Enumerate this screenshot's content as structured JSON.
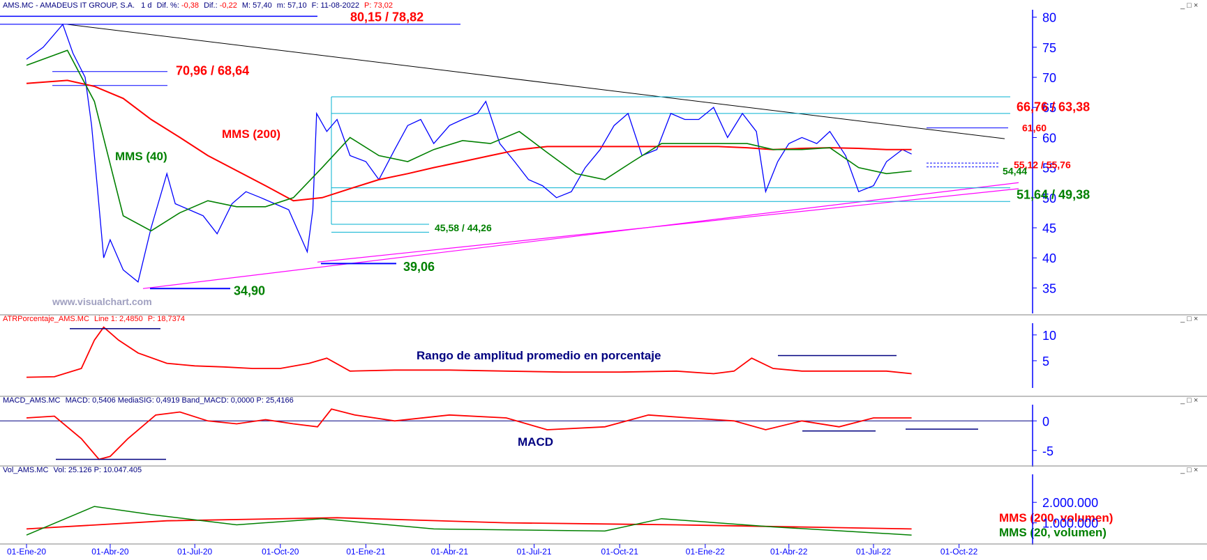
{
  "colors": {
    "price": "#0000ff",
    "mms200": "#ff0000",
    "mms40": "#008000",
    "support": "#ff00ff",
    "resistance": "#00b0d0",
    "trend": "#000000",
    "title_blue": "#000080",
    "axis_blue": "#0000ff",
    "grid": "#c0c0c0"
  },
  "header": {
    "ticker": "AMS.MC - AMADEUS IT GROUP, S.A.",
    "period": "1 d",
    "dif_pct_label": "Dif. %:",
    "dif_pct": "-0,38",
    "dif_label": "Dif.:",
    "dif": "-0,22",
    "max_label": "M:",
    "max": "57,40",
    "min_label": "m:",
    "min": "57,10",
    "date_label": "F:",
    "date": "11-08-2022",
    "p_label": "P:",
    "p": "73,02"
  },
  "panel_controls": "_ □ ×",
  "watermark": "www.visualchart.com",
  "chart_data": [
    {
      "type": "line",
      "panel": "price",
      "ylim": [
        31,
        81
      ],
      "yticks": [
        35,
        40,
        45,
        50,
        55,
        60,
        65,
        70,
        75,
        80
      ],
      "x_dates": [
        "01-Ene-20",
        "01-Abr-20",
        "01-Jul-20",
        "01-Oct-20",
        "01-Ene-21",
        "01-Abr-21",
        "01-Jul-21",
        "01-Oct-21",
        "01-Ene-22",
        "01-Abr-22",
        "01-Jul-22",
        "01-Oct-22"
      ],
      "series": [
        {
          "name": "MMS (40)",
          "x": [
            "2020-01-02",
            "2020-02-15",
            "2020-03-15",
            "2020-04-15",
            "2020-05-15",
            "2020-06-15",
            "2020-07-15",
            "2020-08-15",
            "2020-09-15",
            "2020-10-15",
            "2020-11-15",
            "2020-12-15",
            "2021-01-15",
            "2021-02-15",
            "2021-03-15",
            "2021-04-15",
            "2021-05-15",
            "2021-06-15",
            "2021-07-15",
            "2021-08-15",
            "2021-09-15",
            "2021-10-15",
            "2021-11-15",
            "2021-12-15",
            "2022-01-15",
            "2022-02-15",
            "2022-03-15",
            "2022-04-15",
            "2022-05-15",
            "2022-06-15",
            "2022-07-15",
            "2022-08-11"
          ],
          "values": [
            72,
            74.5,
            66,
            47,
            44.5,
            47.5,
            49.5,
            48.5,
            48.5,
            50,
            55,
            60,
            57,
            56,
            58,
            59.5,
            59,
            61,
            57.5,
            54,
            53,
            56,
            59,
            59,
            59,
            59,
            58,
            58,
            58.3,
            55,
            54,
            54.44
          ]
        },
        {
          "name": "MMS (200)",
          "x": [
            "2020-01-02",
            "2020-02-15",
            "2020-03-15",
            "2020-04-15",
            "2020-05-15",
            "2020-06-15",
            "2020-07-15",
            "2020-08-15",
            "2020-09-15",
            "2020-10-15",
            "2020-11-15",
            "2020-12-15",
            "2021-01-15",
            "2021-02-15",
            "2021-03-15",
            "2021-04-15",
            "2021-05-15",
            "2021-06-15",
            "2021-07-15",
            "2021-08-15",
            "2021-09-15",
            "2021-10-15",
            "2021-11-15",
            "2021-12-15",
            "2022-01-15",
            "2022-02-15",
            "2022-03-15",
            "2022-04-15",
            "2022-05-15",
            "2022-06-15",
            "2022-07-15",
            "2022-08-11"
          ],
          "values": [
            69,
            69.5,
            68.5,
            66.5,
            63,
            60,
            57,
            54.5,
            52,
            49.5,
            50,
            51.5,
            53,
            54,
            55,
            56,
            57,
            58,
            58.5,
            58.5,
            58.5,
            58.5,
            58.5,
            58.5,
            58.5,
            58.3,
            58,
            58.2,
            58.3,
            58.2,
            58,
            58
          ]
        },
        {
          "name": "AMS.MC",
          "x": [
            "2020-01-02",
            "2020-01-20",
            "2020-02-10",
            "2020-02-21",
            "2020-03-05",
            "2020-03-12",
            "2020-03-18",
            "2020-03-25",
            "2020-04-01",
            "2020-04-15",
            "2020-05-01",
            "2020-05-15",
            "2020-06-01",
            "2020-06-10",
            "2020-06-25",
            "2020-07-10",
            "2020-07-25",
            "2020-08-10",
            "2020-08-25",
            "2020-09-10",
            "2020-09-25",
            "2020-10-10",
            "2020-10-30",
            "2020-11-05",
            "2020-11-09",
            "2020-11-20",
            "2020-12-01",
            "2020-12-15",
            "2021-01-01",
            "2021-01-15",
            "2021-02-01",
            "2021-02-15",
            "2021-03-01",
            "2021-03-15",
            "2021-04-01",
            "2021-04-15",
            "2021-05-01",
            "2021-05-10",
            "2021-05-25",
            "2021-06-10",
            "2021-06-25",
            "2021-07-10",
            "2021-07-25",
            "2021-08-10",
            "2021-08-25",
            "2021-09-10",
            "2021-09-25",
            "2021-10-10",
            "2021-10-25",
            "2021-11-10",
            "2021-11-25",
            "2021-12-10",
            "2021-12-25",
            "2022-01-10",
            "2022-01-25",
            "2022-02-10",
            "2022-02-25",
            "2022-03-07",
            "2022-03-20",
            "2022-04-01",
            "2022-04-15",
            "2022-05-01",
            "2022-05-15",
            "2022-06-01",
            "2022-06-15",
            "2022-07-01",
            "2022-07-15",
            "2022-08-01",
            "2022-08-11"
          ],
          "values": [
            73,
            75,
            78.8,
            74,
            70,
            62,
            52,
            40,
            43,
            38,
            36,
            45,
            54,
            49,
            48,
            47,
            44,
            49,
            51,
            50,
            49,
            48,
            41,
            48,
            64,
            61,
            63,
            57,
            56,
            53,
            58,
            62,
            63,
            59,
            62,
            63,
            64,
            66,
            59,
            56,
            53,
            52,
            50,
            51,
            55,
            58,
            62,
            64,
            57,
            58,
            64,
            63,
            63,
            65,
            60,
            64,
            61,
            51,
            56,
            59,
            60,
            59,
            61,
            57,
            51,
            52,
            56,
            58,
            57.25
          ]
        }
      ],
      "levels": [
        {
          "label": "80,15 / 78,82",
          "values": [
            80.15,
            78.82
          ]
        },
        {
          "label": "70,96 / 68,64",
          "values": [
            70.96,
            68.64
          ]
        },
        {
          "label": "66,76 / 63,38",
          "values": [
            66.76,
            63.38
          ]
        },
        {
          "label": "61,60",
          "values": [
            61.6
          ]
        },
        {
          "label": "55,12 / 55,76",
          "values": [
            55.12,
            55.76
          ]
        },
        {
          "label": "54,44",
          "values": [
            54.44
          ]
        },
        {
          "label": "51,64 / 49,38",
          "values": [
            51.64,
            49.38
          ]
        },
        {
          "label": "45,58 / 44,26",
          "values": [
            45.58,
            44.26
          ]
        },
        {
          "label": "39,06",
          "values": [
            39.06
          ]
        },
        {
          "label": "34,90",
          "values": [
            34.9
          ]
        }
      ],
      "annotations": [
        "MMS (200)",
        "MMS (40)"
      ]
    },
    {
      "type": "line",
      "panel": "atr",
      "title": "ATRPorcentaje_AMS.MC",
      "legend_line": "Line 1:",
      "legend_value": "2,4850",
      "legend_p": "P: 18,7374",
      "annotation": "Rango de amplitud promedio en porcentaje",
      "ylim": [
        0,
        12
      ],
      "yticks": [
        5,
        10
      ],
      "series": [
        {
          "x": [
            "2020-01-02",
            "2020-02-01",
            "2020-03-01",
            "2020-03-15",
            "2020-03-25",
            "2020-04-10",
            "2020-05-01",
            "2020-06-01",
            "2020-07-01",
            "2020-08-01",
            "2020-09-01",
            "2020-10-01",
            "2020-11-01",
            "2020-11-20",
            "2020-12-15",
            "2021-02-01",
            "2021-04-01",
            "2021-06-01",
            "2021-08-01",
            "2021-10-01",
            "2021-12-01",
            "2022-01-10",
            "2022-02-01",
            "2022-02-20",
            "2022-03-15",
            "2022-04-15",
            "2022-06-01",
            "2022-07-15",
            "2022-08-11"
          ],
          "values": [
            1.8,
            1.9,
            3.5,
            9,
            11.5,
            9,
            6.5,
            4.5,
            4,
            3.8,
            3.5,
            3.5,
            4.5,
            5.5,
            3,
            3.2,
            3.2,
            3,
            2.8,
            2.8,
            3,
            2.5,
            3,
            5.5,
            3.5,
            3,
            3,
            3,
            2.5
          ]
        }
      ]
    },
    {
      "type": "line",
      "panel": "macd",
      "title": "MACD_AMS.MC",
      "legend": "MACD: 0,5406  MediaSIG: 0,4919  Band_MACD: 0,0000  P: 25,4166",
      "annotation": "MACD",
      "ylim": [
        -7.5,
        2.5
      ],
      "yticks": [
        0,
        -5
      ],
      "series": [
        {
          "name": "MACD",
          "x": [
            "2020-01-02",
            "2020-02-01",
            "2020-03-01",
            "2020-03-20",
            "2020-04-01",
            "2020-04-20",
            "2020-05-20",
            "2020-06-15",
            "2020-07-15",
            "2020-08-15",
            "2020-09-15",
            "2020-10-15",
            "2020-11-10",
            "2020-11-25",
            "2020-12-20",
            "2021-02-01",
            "2021-04-01",
            "2021-06-01",
            "2021-07-15",
            "2021-09-15",
            "2021-11-01",
            "2021-12-15",
            "2022-02-01",
            "2022-03-07",
            "2022-04-15",
            "2022-05-25",
            "2022-07-01",
            "2022-08-11"
          ],
          "values": [
            0.5,
            0.8,
            -3,
            -6.5,
            -6,
            -3,
            1,
            1.5,
            0,
            -0.5,
            0.2,
            -0.5,
            -1,
            2,
            1,
            0,
            1,
            0.5,
            -1.5,
            -1,
            1,
            0.5,
            0,
            -1.5,
            0,
            -1,
            0.5,
            0.5
          ]
        }
      ]
    },
    {
      "type": "bar",
      "panel": "volume",
      "title": "Vol_AMS.MC",
      "legend": "Vol: 25.126  P: 10.047.405",
      "ylim": [
        0,
        3300000
      ],
      "yticks": [
        1000000,
        2000000
      ],
      "ytick_labels": [
        "1.000.000",
        "2.000.000"
      ],
      "series": [
        {
          "name": "MMS (200, volumen)",
          "x": [
            "2020-01-02",
            "2020-06-01",
            "2020-12-01",
            "2021-06-01",
            "2021-12-01",
            "2022-08-11"
          ],
          "values": [
            700000,
            1100000,
            1250000,
            1000000,
            900000,
            700000
          ]
        },
        {
          "name": "MMS (20, volumen)",
          "x": [
            "2020-01-02",
            "2020-03-15",
            "2020-05-15",
            "2020-08-15",
            "2020-11-15",
            "2021-03-15",
            "2021-09-15",
            "2021-11-15",
            "2022-03-15",
            "2022-08-11"
          ],
          "values": [
            400000,
            1800000,
            1400000,
            900000,
            1200000,
            700000,
            600000,
            1200000,
            800000,
            400000
          ]
        }
      ]
    }
  ]
}
